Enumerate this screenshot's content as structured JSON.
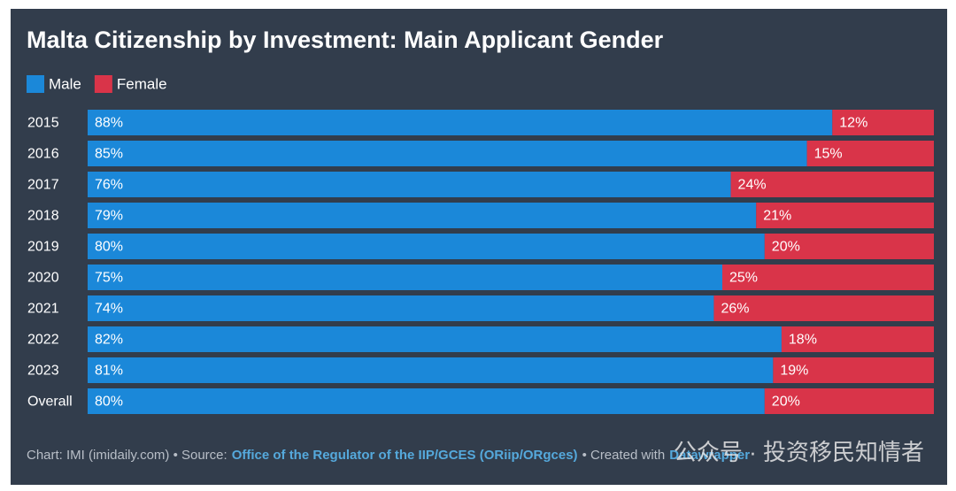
{
  "chart_data": {
    "type": "stacked-bar-horizontal",
    "title": "Malta Citizenship by Investment: Main Applicant Gender",
    "categories": [
      "2015",
      "2016",
      "2017",
      "2018",
      "2019",
      "2020",
      "2021",
      "2022",
      "2023",
      "Overall"
    ],
    "series": [
      {
        "name": "Male",
        "color": "#1b88d9",
        "values": [
          88,
          85,
          76,
          79,
          80,
          75,
          74,
          82,
          81,
          80
        ],
        "value_labels": [
          "88%",
          "85%",
          "76%",
          "79%",
          "80%",
          "75%",
          "74%",
          "82%",
          "81%",
          "80%"
        ]
      },
      {
        "name": "Female",
        "color": "#d93449",
        "values": [
          12,
          15,
          24,
          21,
          20,
          25,
          26,
          18,
          19,
          20
        ],
        "value_labels": [
          "12%",
          "15%",
          "24%",
          "21%",
          "20%",
          "25%",
          "26%",
          "18%",
          "19%",
          "20%"
        ]
      }
    ],
    "xlim": [
      0,
      100
    ],
    "credit": {
      "prefix": "Chart: IMI (imidaily.com) • Source:",
      "source": "Office of the Regulator of the IIP/GCES (ORiip/ORgces)",
      "created_with": "• Created with",
      "tool": "Datawrapper"
    },
    "watermark": "公众号 · 投资移民知情者"
  }
}
